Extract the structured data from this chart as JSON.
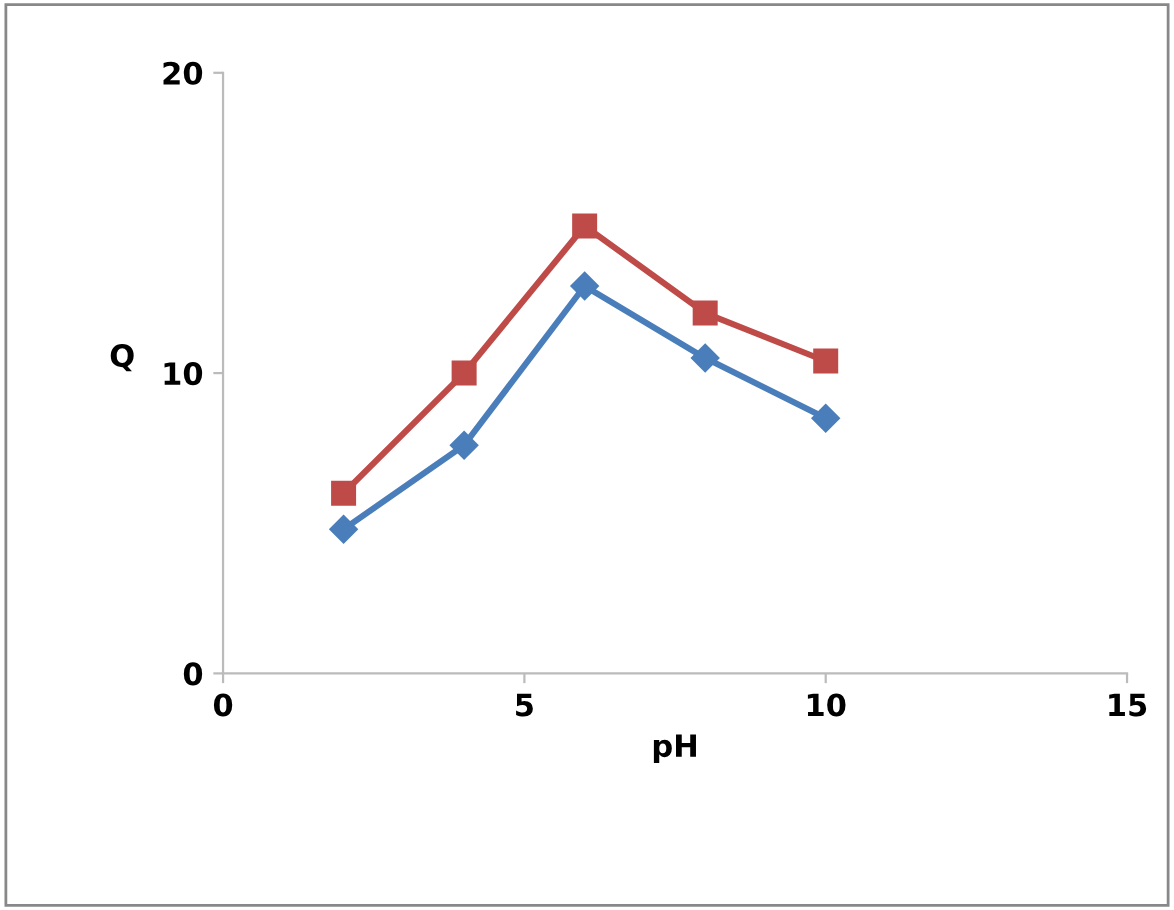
{
  "chart_data": {
    "type": "line",
    "xlabel": "pH",
    "ylabel": "Q",
    "xlim": [
      0,
      15
    ],
    "ylim": [
      0,
      20
    ],
    "xticks": [
      0,
      5,
      10,
      15
    ],
    "yticks": [
      0,
      10,
      20
    ],
    "grid": false,
    "legend": false,
    "line_style": "solid",
    "x": [
      2,
      4,
      6,
      8,
      10
    ],
    "series": [
      {
        "color": "#4a7ebb",
        "marker": "diamond",
        "values": [
          4.8,
          7.6,
          12.9,
          10.5,
          8.5
        ]
      },
      {
        "color": "#be4b48",
        "marker": "square",
        "values": [
          6.0,
          10.0,
          14.9,
          12.0,
          10.4
        ]
      }
    ]
  }
}
